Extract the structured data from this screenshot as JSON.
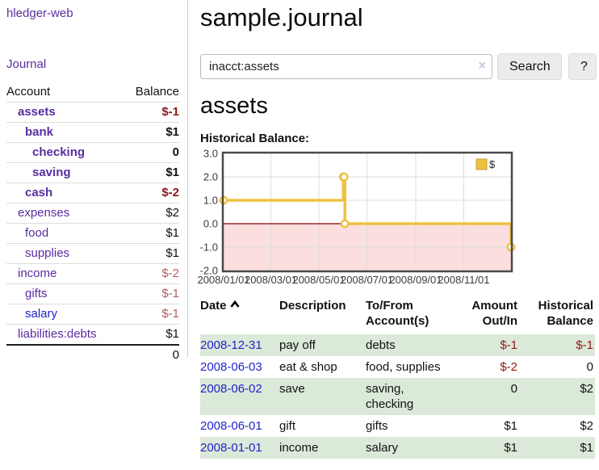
{
  "colors": {
    "accent_purple": "#5a2ca0",
    "link_blue": "#2323cc",
    "negative_strong": "#8e1515",
    "negative_muted": "#b25e5e",
    "row_stripe_green": "#dbe9d8",
    "chart_series_yellow": "#EDC240",
    "chart_negative_region": "#fbdede",
    "chart_zero_line": "#8b0000"
  },
  "sidebar": {
    "brand": "hledger-web",
    "nav": {
      "journal": "Journal"
    },
    "accounts": {
      "headers": {
        "account": "Account",
        "balance": "Balance"
      },
      "rows": [
        {
          "name": "assets",
          "balance": "$-1"
        },
        {
          "name": "bank",
          "balance": "$1"
        },
        {
          "name": "checking",
          "balance": "0"
        },
        {
          "name": "saving",
          "balance": "$1"
        },
        {
          "name": "cash",
          "balance": "$-2"
        },
        {
          "name": "expenses",
          "balance": "$2"
        },
        {
          "name": "food",
          "balance": "$1"
        },
        {
          "name": "supplies",
          "balance": "$1"
        },
        {
          "name": "income",
          "balance": "$-2"
        },
        {
          "name": "gifts",
          "balance": "$-1"
        },
        {
          "name": "salary",
          "balance": "$-1"
        },
        {
          "name": "liabilities:debts",
          "balance": "$1"
        }
      ],
      "total": "0"
    }
  },
  "main": {
    "title": "sample.journal",
    "search": {
      "value": "inacct:assets",
      "clear": "×",
      "search_button": "Search",
      "help_button": "?"
    },
    "account_heading": "assets",
    "chart_title": "Historical Balance:"
  },
  "chart_data": {
    "type": "line",
    "title": "Historical Balance:",
    "step": true,
    "series": [
      {
        "name": "$",
        "color": "#EDC240",
        "points": [
          {
            "date": "2008-01-01",
            "value": 1
          },
          {
            "date": "2008-06-01",
            "value": 2
          },
          {
            "date": "2008-06-02",
            "value": 2
          },
          {
            "date": "2008-06-03",
            "value": 0
          },
          {
            "date": "2008-12-31",
            "value": -1
          }
        ]
      }
    ],
    "x_range": [
      "2008-01-01",
      "2008-12-31"
    ],
    "x_ticks": [
      {
        "date": "2008-01-01",
        "label": "2008/01/01"
      },
      {
        "date": "2008-03-01",
        "label": "2008/03/01"
      },
      {
        "date": "2008-05-01",
        "label": "2008/05/01"
      },
      {
        "date": "2008-07-01",
        "label": "2008/07/01"
      },
      {
        "date": "2008-09-01",
        "label": "2008/09/01"
      },
      {
        "date": "2008-11-01",
        "label": "2008/11/01"
      }
    ],
    "y_ticks": [
      {
        "value": 3,
        "label": "3.0"
      },
      {
        "value": 2,
        "label": "2.0"
      },
      {
        "value": 1,
        "label": "1.0"
      },
      {
        "value": 0,
        "label": "0.0"
      },
      {
        "value": -1,
        "label": "-1.0"
      },
      {
        "value": -2,
        "label": "-2.0"
      }
    ],
    "y_range": [
      -2,
      3
    ],
    "grid": true,
    "legend_position": "top-right",
    "negative_region_color": "#fbdede",
    "zero_line_color": "#8b0000"
  },
  "register": {
    "headers": {
      "date": "Date",
      "description": "Description",
      "accounts": "To/From Account(s)",
      "amount": "Amount Out/In",
      "balance": "Historical Balance"
    },
    "rows": [
      {
        "date": "2008-12-31",
        "description": "pay off",
        "accounts": "debts",
        "amount": "$-1",
        "balance": "$-1"
      },
      {
        "date": "2008-06-03",
        "description": "eat & shop",
        "accounts": "food, supplies",
        "amount": "$-2",
        "balance": "0"
      },
      {
        "date": "2008-06-02",
        "description": "save",
        "accounts": "saving, checking",
        "amount": "0",
        "balance": "$2"
      },
      {
        "date": "2008-06-01",
        "description": "gift",
        "accounts": "gifts",
        "amount": "$1",
        "balance": "$2"
      },
      {
        "date": "2008-01-01",
        "description": "income",
        "accounts": "salary",
        "amount": "$1",
        "balance": "$1"
      }
    ]
  }
}
